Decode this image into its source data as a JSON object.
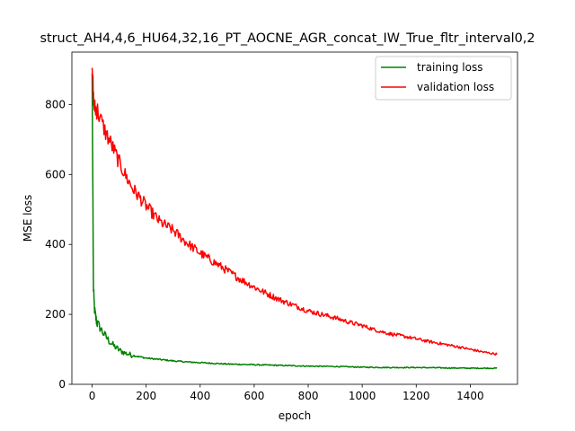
{
  "chart_data": {
    "type": "line",
    "title": "struct_AH4,4,6_HU64,32,16_PT_AOCNE_AGR_concat_IW_True_fltr_interval0,2",
    "xlabel": "epoch",
    "ylabel": "MSE loss",
    "xlim": [
      -75,
      1575
    ],
    "ylim": [
      0,
      950
    ],
    "xticks": [
      0,
      200,
      400,
      600,
      800,
      1000,
      1200,
      1400
    ],
    "yticks": [
      0,
      200,
      400,
      600,
      800
    ],
    "grid": false,
    "legend_position": "top-right",
    "series": [
      {
        "name": "training loss",
        "color": "#008000",
        "x": [
          0,
          2,
          5,
          10,
          15,
          20,
          30,
          40,
          50,
          60,
          70,
          80,
          90,
          100,
          120,
          140,
          160,
          180,
          200,
          250,
          300,
          350,
          400,
          450,
          500,
          600,
          700,
          800,
          900,
          1000,
          1100,
          1200,
          1300,
          1400,
          1500
        ],
        "values": [
          890,
          640,
          260,
          205,
          185,
          172,
          162,
          148,
          137,
          127,
          118,
          110,
          104,
          98,
          90,
          85,
          81,
          78,
          75,
          71,
          67,
          64,
          62,
          60,
          58,
          56,
          54,
          52,
          51,
          49,
          48,
          48,
          47,
          46,
          46
        ]
      },
      {
        "name": "validation loss",
        "color": "#ff0000",
        "x": [
          0,
          3,
          6,
          10,
          20,
          30,
          50,
          75,
          100,
          125,
          150,
          175,
          200,
          250,
          300,
          350,
          400,
          450,
          500,
          550,
          600,
          650,
          700,
          750,
          800,
          850,
          900,
          950,
          1000,
          1050,
          1100,
          1150,
          1200,
          1250,
          1300,
          1350,
          1400,
          1450,
          1500
        ],
        "values": [
          905,
          860,
          800,
          790,
          782,
          760,
          720,
          680,
          635,
          595,
          560,
          535,
          510,
          465,
          440,
          405,
          375,
          350,
          325,
          300,
          278,
          258,
          240,
          225,
          210,
          200,
          190,
          178,
          168,
          155,
          145,
          138,
          130,
          122,
          115,
          108,
          100,
          92,
          86
        ]
      }
    ]
  }
}
